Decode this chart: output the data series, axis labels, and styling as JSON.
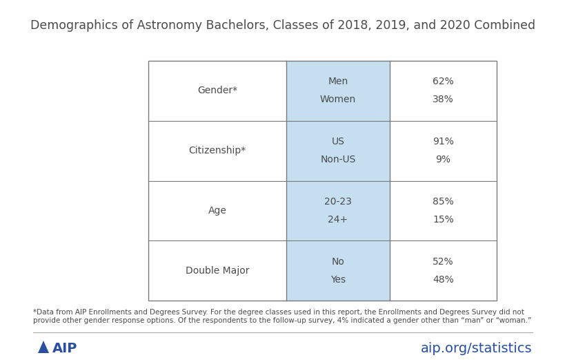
{
  "title": "Demographics of Astronomy Bachelors, Classes of 2018, 2019, and 2020 Combined",
  "title_fontsize": 12.5,
  "title_color": "#4a4a4a",
  "background_color": "#ffffff",
  "table": {
    "rows": [
      {
        "category": "Gender*",
        "subcategories": [
          "Men",
          "Women"
        ],
        "values": [
          "62%",
          "38%"
        ]
      },
      {
        "category": "Citizenship*",
        "subcategories": [
          "US",
          "Non-US"
        ],
        "values": [
          "91%",
          "9%"
        ]
      },
      {
        "category": "Age",
        "subcategories": [
          "20-23",
          "24+"
        ],
        "values": [
          "85%",
          "15%"
        ]
      },
      {
        "category": "Double Major",
        "subcategories": [
          "No",
          "Yes"
        ],
        "values": [
          "52%",
          "48%"
        ]
      }
    ],
    "middle_col_bg": "#c5dff0",
    "border_color": "#7a7a7a",
    "text_color": "#4a4a4a",
    "category_fontsize": 10,
    "value_fontsize": 10
  },
  "footnote_line1": "*Data from AIP Enrollments and Degrees Survey. For the degree classes used in this report, the Enrollments and Degrees Survey did not",
  "footnote_line2": "provide other gender response options. Of the respondents to the follow-up survey, 4% indicated a gender other than “man” or “woman.”",
  "footnote_fontsize": 7.5,
  "footnote_color": "#4a4a4a",
  "footer_left": "AIP",
  "footer_right": "aip.org/statistics",
  "footer_fontsize": 14,
  "footer_color": "#2b4fa0",
  "separator_color": "#aaaaaa",
  "aip_logo_color": "#2b4fa0"
}
